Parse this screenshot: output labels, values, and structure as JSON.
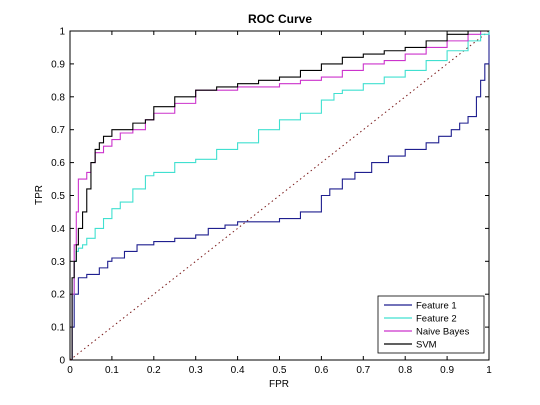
{
  "chart_data": {
    "type": "line",
    "title": "ROC Curve",
    "xlabel": "FPR",
    "ylabel": "TPR",
    "xlim": [
      0,
      1
    ],
    "ylim": [
      0,
      1
    ],
    "xticks": [
      0,
      0.1,
      0.2,
      0.3,
      0.4,
      0.5,
      0.6,
      0.7,
      0.8,
      0.9,
      1
    ],
    "yticks": [
      0,
      0.1,
      0.2,
      0.3,
      0.4,
      0.5,
      0.6,
      0.7,
      0.8,
      0.9,
      1
    ],
    "tick_labels_x": [
      "0",
      "0.1",
      "0.2",
      "0.3",
      "0.4",
      "0.5",
      "0.6",
      "0.7",
      "0.8",
      "0.9",
      "1"
    ],
    "tick_labels_y": [
      "0",
      "0.1",
      "0.2",
      "0.3",
      "0.4",
      "0.5",
      "0.6",
      "0.7",
      "0.8",
      "0.9",
      "1"
    ],
    "grid": false,
    "legend_position": "bottom-right",
    "reference_line": {
      "x": [
        0,
        1
      ],
      "y": [
        0,
        1
      ],
      "style": "dotted",
      "color": "#7a1a1a"
    },
    "series": [
      {
        "name": "Feature 1",
        "color": "#1f1f8f",
        "x": [
          0,
          0.005,
          0.01,
          0.01,
          0.02,
          0.02,
          0.04,
          0.04,
          0.05,
          0.07,
          0.09,
          0.1,
          0.13,
          0.16,
          0.2,
          0.25,
          0.3,
          0.33,
          0.37,
          0.4,
          0.45,
          0.5,
          0.55,
          0.6,
          0.62,
          0.65,
          0.68,
          0.72,
          0.76,
          0.8,
          0.85,
          0.88,
          0.91,
          0.93,
          0.95,
          0.97,
          0.98,
          0.99,
          1.0
        ],
        "y": [
          0,
          0.1,
          0.15,
          0.2,
          0.22,
          0.25,
          0.25,
          0.26,
          0.26,
          0.28,
          0.3,
          0.31,
          0.33,
          0.35,
          0.36,
          0.37,
          0.38,
          0.4,
          0.41,
          0.42,
          0.42,
          0.43,
          0.45,
          0.5,
          0.52,
          0.55,
          0.57,
          0.6,
          0.62,
          0.64,
          0.66,
          0.68,
          0.7,
          0.72,
          0.74,
          0.8,
          0.85,
          0.9,
          1.0
        ]
      },
      {
        "name": "Feature 2",
        "color": "#40e0d0",
        "x": [
          0,
          0.005,
          0.01,
          0.015,
          0.02,
          0.03,
          0.04,
          0.06,
          0.08,
          0.1,
          0.12,
          0.15,
          0.18,
          0.2,
          0.25,
          0.3,
          0.35,
          0.4,
          0.45,
          0.5,
          0.55,
          0.6,
          0.63,
          0.65,
          0.7,
          0.75,
          0.8,
          0.85,
          0.9,
          0.95,
          0.98,
          1.0
        ],
        "y": [
          0,
          0.2,
          0.3,
          0.33,
          0.34,
          0.35,
          0.37,
          0.4,
          0.43,
          0.46,
          0.48,
          0.52,
          0.56,
          0.57,
          0.6,
          0.61,
          0.64,
          0.66,
          0.7,
          0.73,
          0.75,
          0.79,
          0.81,
          0.82,
          0.84,
          0.86,
          0.88,
          0.91,
          0.94,
          0.97,
          0.99,
          1.0
        ]
      },
      {
        "name": "Naive Bayes",
        "color": "#cc33cc",
        "x": [
          0,
          0.005,
          0.01,
          0.015,
          0.02,
          0.03,
          0.04,
          0.05,
          0.06,
          0.08,
          0.1,
          0.12,
          0.15,
          0.18,
          0.2,
          0.25,
          0.3,
          0.4,
          0.45,
          0.5,
          0.55,
          0.6,
          0.65,
          0.7,
          0.75,
          0.8,
          0.85,
          0.9,
          0.95,
          0.98,
          1.0
        ],
        "y": [
          0,
          0.2,
          0.35,
          0.45,
          0.55,
          0.55,
          0.57,
          0.6,
          0.63,
          0.65,
          0.67,
          0.69,
          0.7,
          0.73,
          0.75,
          0.78,
          0.82,
          0.83,
          0.83,
          0.84,
          0.85,
          0.86,
          0.88,
          0.9,
          0.91,
          0.93,
          0.95,
          0.97,
          0.99,
          1.0,
          1.0
        ]
      },
      {
        "name": "SVM",
        "color": "#000000",
        "x": [
          0,
          0.005,
          0.01,
          0.015,
          0.02,
          0.03,
          0.04,
          0.05,
          0.06,
          0.07,
          0.08,
          0.1,
          0.12,
          0.15,
          0.18,
          0.2,
          0.25,
          0.3,
          0.35,
          0.4,
          0.45,
          0.5,
          0.55,
          0.6,
          0.65,
          0.7,
          0.75,
          0.8,
          0.85,
          0.9,
          0.95,
          1.0
        ],
        "y": [
          0,
          0.25,
          0.3,
          0.35,
          0.4,
          0.45,
          0.52,
          0.6,
          0.64,
          0.66,
          0.68,
          0.7,
          0.7,
          0.72,
          0.73,
          0.77,
          0.8,
          0.82,
          0.83,
          0.84,
          0.85,
          0.86,
          0.88,
          0.9,
          0.92,
          0.93,
          0.94,
          0.95,
          0.97,
          0.99,
          1.0,
          1.0
        ]
      }
    ]
  }
}
